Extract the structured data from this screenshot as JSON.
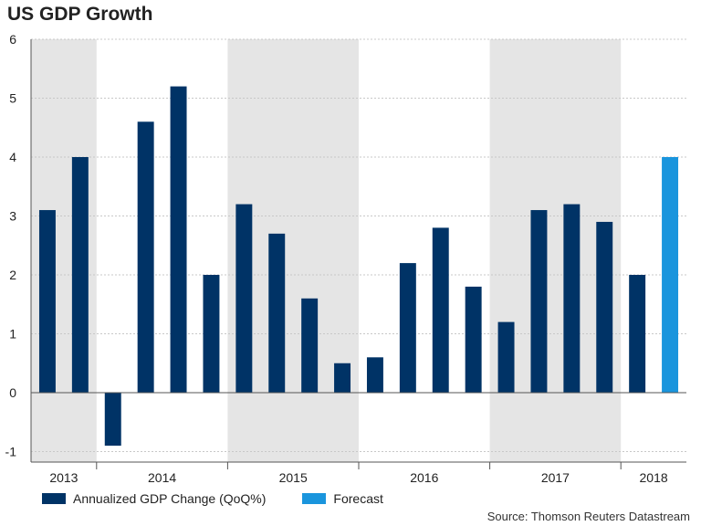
{
  "title": "US GDP Growth",
  "source": "Source: Thomson Reuters Datastream",
  "chart_data": {
    "type": "bar",
    "title": "US GDP Growth",
    "xlabel": "",
    "ylabel": "",
    "ylim": [
      -1.2,
      6
    ],
    "yticks": [
      6,
      5,
      4,
      3,
      2,
      1,
      0,
      -1
    ],
    "grid": true,
    "legend_position": "bottom-left",
    "years": [
      "2013",
      "2014",
      "2015",
      "2016",
      "2017",
      "2018"
    ],
    "year_bar_counts": [
      2,
      4,
      4,
      4,
      4,
      2
    ],
    "shaded_years": [
      "2013",
      "2015",
      "2017"
    ],
    "colors": {
      "actual": "#003366",
      "forecast": "#1a95dd",
      "shade": "#e5e5e5",
      "grid": "#c8c8c8"
    },
    "series": [
      {
        "name": "Annualized GDP Change (QoQ%)",
        "values": [
          3.1,
          4.0,
          -0.9,
          4.6,
          5.2,
          2.0,
          3.2,
          2.7,
          1.6,
          0.5,
          0.6,
          2.2,
          2.8,
          1.8,
          1.2,
          3.1,
          3.2,
          2.9,
          2.0,
          null
        ]
      },
      {
        "name": "Forecast",
        "values": [
          null,
          null,
          null,
          null,
          null,
          null,
          null,
          null,
          null,
          null,
          null,
          null,
          null,
          null,
          null,
          null,
          null,
          null,
          null,
          4.0
        ]
      }
    ]
  }
}
